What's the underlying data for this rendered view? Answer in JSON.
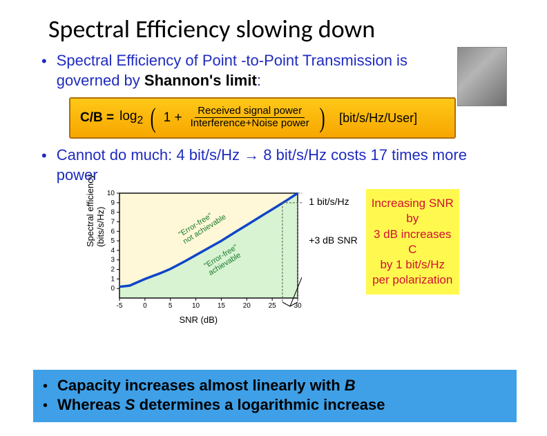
{
  "title": "Spectral Efficiency  slowing down",
  "bullet1": {
    "pre": "Spectral Efficiency of Point -to-Point Transmission is governed by ",
    "bold": "Shannon's limit",
    "post": ":"
  },
  "formula": {
    "lhs": "C/B =",
    "log": "log",
    "sub": "2",
    "one_plus": "1 +",
    "numerator": "Received signal power",
    "denominator": "Interference+Noise power",
    "unit": "[bit/s/Hz/User]",
    "box_bg_top": "#ffc817",
    "box_bg_bottom": "#f7a600",
    "box_border": "#b06e00"
  },
  "bullet2": "Cannot do much: 4 bit/s/Hz → 8 bit/s/Hz costs 17 times more power",
  "chart": {
    "type": "line",
    "xlabel": "SNR (dB)",
    "ylabel": "Spectral efficiency\n(bits/s/Hz)",
    "xlim": [
      -5,
      30
    ],
    "ylim": [
      -1,
      10
    ],
    "xticks": [
      -5,
      0,
      5,
      10,
      15,
      20,
      25,
      30
    ],
    "yticks": [
      0,
      1,
      2,
      3,
      4,
      5,
      6,
      7,
      8,
      9,
      10
    ],
    "curve_points": [
      [
        -5,
        0.18
      ],
      [
        -3,
        0.3
      ],
      [
        0,
        1.0
      ],
      [
        3,
        1.6
      ],
      [
        5,
        2.05
      ],
      [
        8,
        2.9
      ],
      [
        10,
        3.5
      ],
      [
        13,
        4.4
      ],
      [
        15,
        5.0
      ],
      [
        18,
        6.0
      ],
      [
        20,
        6.65
      ],
      [
        23,
        7.65
      ],
      [
        25,
        8.3
      ],
      [
        28,
        9.3
      ],
      [
        30,
        10.0
      ]
    ],
    "curve_color": "#1045c8",
    "curve_width": 3.5,
    "fill_color": "#d7f3d2",
    "background": "#fef8d8",
    "axis_color": "#000000",
    "grid_color": "#9aa0a6",
    "tick_fontsize": 10,
    "label_fontsize": 13,
    "dashed_color": "#555555",
    "region_upper_label_1": "\"Error-free\"",
    "region_upper_label_2": "not achievable",
    "region_lower_label_1": "\"Error-free\"",
    "region_lower_label_2": "achievable",
    "annotation_y": "1 bit/s/Hz",
    "annotation_x": "+3 dB SNR",
    "marker_x1": 27,
    "marker_x2": 30,
    "marker_y1": 9,
    "marker_y2": 10
  },
  "snr_box": {
    "line1": "Increasing SNR by",
    "line2": "3 dB increases C",
    "line3": "by 1 bit/s/Hz",
    "line4": "per polarization",
    "bg": "#fff94f",
    "text_color": "#d01030"
  },
  "bluebar": {
    "line1_pre": "Capacity increases almost linearly with ",
    "line1_ital": "B",
    "line2_pre": "Whereas ",
    "line2_ital": "S ",
    "line2_post": "determines a logarithmic increase",
    "bg": "#3fa0e8"
  },
  "colors": {
    "bullet_blue": "#1f2bbf"
  }
}
